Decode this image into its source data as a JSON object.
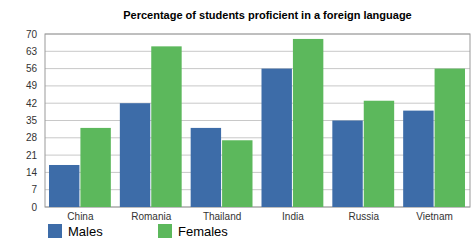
{
  "chart_data": {
    "type": "bar",
    "title": "Percentage of students proficient in a foreign language",
    "categories": [
      "China",
      "Romania",
      "Thailand",
      "India",
      "Russia",
      "Vietnam"
    ],
    "series": [
      {
        "name": "Males",
        "color": "#3d6ca8",
        "values": [
          17,
          42,
          32,
          56,
          35,
          39
        ]
      },
      {
        "name": "Females",
        "color": "#5cb85c",
        "values": [
          32,
          65,
          27,
          68,
          43,
          56
        ]
      }
    ],
    "ylim": [
      0,
      70
    ],
    "yticks": [
      0,
      7,
      14,
      21,
      28,
      35,
      42,
      49,
      56,
      63,
      70
    ],
    "grid": true,
    "legend": "bottom"
  }
}
